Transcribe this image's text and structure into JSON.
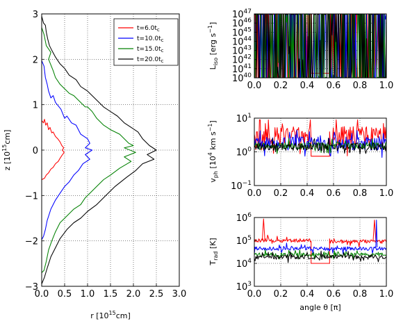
{
  "chart_data": [
    {
      "type": "line",
      "id": "main",
      "xlim": [
        0,
        3.0
      ],
      "ylim": [
        -3,
        3
      ],
      "xticks": [
        0.0,
        0.5,
        1.0,
        1.5,
        2.0,
        2.5,
        3.0
      ],
      "xtick_labels": [
        "0.0",
        "0.5",
        "1.0",
        "1.5",
        "2.0",
        "2.5",
        "3.0"
      ],
      "yticks": [
        -3,
        -2,
        -1,
        0,
        1,
        2,
        3
      ],
      "ytick_labels": [
        "−3",
        "−2",
        "−1",
        "0",
        "1",
        "2",
        "3"
      ],
      "xlabel": "r [10",
      "xlabel_sup": "15",
      "xlabel_end": "cm]",
      "ylabel": "z [10",
      "ylabel_sup": "15",
      "ylabel_end": "cm]",
      "grid": true,
      "legend_position": "top-right",
      "series": [
        {
          "name": "t=6.0t",
          "sub": "c",
          "color": "#ff0000",
          "points": [
            [
              0,
              0.65
            ],
            [
              0.04,
              0.6
            ],
            [
              0.06,
              0.68
            ],
            [
              0.09,
              0.55
            ],
            [
              0.12,
              0.6
            ],
            [
              0.15,
              0.45
            ],
            [
              0.18,
              0.5
            ],
            [
              0.22,
              0.38
            ],
            [
              0.25,
              0.4
            ],
            [
              0.3,
              0.3
            ],
            [
              0.35,
              0.25
            ],
            [
              0.4,
              0.18
            ],
            [
              0.44,
              0.1
            ],
            [
              0.48,
              0.05
            ],
            [
              0.45,
              0.0
            ],
            [
              0.49,
              -0.05
            ],
            [
              0.44,
              -0.12
            ],
            [
              0.4,
              -0.18
            ],
            [
              0.36,
              -0.25
            ],
            [
              0.3,
              -0.3
            ],
            [
              0.25,
              -0.38
            ],
            [
              0.2,
              -0.42
            ],
            [
              0.15,
              -0.5
            ],
            [
              0.1,
              -0.55
            ],
            [
              0.06,
              -0.62
            ],
            [
              0,
              -0.65
            ]
          ]
        },
        {
          "name": "t=10.0t",
          "sub": "c",
          "color": "#0000ff",
          "points": [
            [
              0,
              1.97
            ],
            [
              0.05,
              1.85
            ],
            [
              0.08,
              1.6
            ],
            [
              0.12,
              1.45
            ],
            [
              0.15,
              1.3
            ],
            [
              0.2,
              1.15
            ],
            [
              0.25,
              1.2
            ],
            [
              0.3,
              1.05
            ],
            [
              0.38,
              0.95
            ],
            [
              0.42,
              0.9
            ],
            [
              0.5,
              0.7
            ],
            [
              0.55,
              0.75
            ],
            [
              0.65,
              0.6
            ],
            [
              0.75,
              0.55
            ],
            [
              0.85,
              0.35
            ],
            [
              1.0,
              0.25
            ],
            [
              1.05,
              0.15
            ],
            [
              0.95,
              0.05
            ],
            [
              1.1,
              0.0
            ],
            [
              0.95,
              -0.1
            ],
            [
              1.05,
              -0.2
            ],
            [
              0.9,
              -0.3
            ],
            [
              0.8,
              -0.45
            ],
            [
              0.7,
              -0.55
            ],
            [
              0.6,
              -0.7
            ],
            [
              0.5,
              -0.8
            ],
            [
              0.4,
              -0.95
            ],
            [
              0.3,
              -1.1
            ],
            [
              0.2,
              -1.3
            ],
            [
              0.12,
              -1.55
            ],
            [
              0.08,
              -1.75
            ],
            [
              0.04,
              -1.9
            ],
            [
              0,
              -1.97
            ]
          ]
        },
        {
          "name": "t=15.0t",
          "sub": "c",
          "color": "#008000",
          "points": [
            [
              0,
              2.7
            ],
            [
              0.05,
              2.55
            ],
            [
              0.1,
              2.3
            ],
            [
              0.17,
              2.2
            ],
            [
              0.2,
              2.15
            ],
            [
              0.15,
              2.0
            ],
            [
              0.25,
              1.75
            ],
            [
              0.3,
              1.6
            ],
            [
              0.4,
              1.45
            ],
            [
              0.5,
              1.35
            ],
            [
              0.6,
              1.25
            ],
            [
              0.7,
              1.2
            ],
            [
              0.85,
              1.05
            ],
            [
              0.95,
              0.95
            ],
            [
              1.0,
              0.95
            ],
            [
              1.1,
              0.85
            ],
            [
              1.2,
              0.7
            ],
            [
              1.35,
              0.55
            ],
            [
              1.5,
              0.45
            ],
            [
              1.7,
              0.35
            ],
            [
              1.9,
              0.15
            ],
            [
              2.0,
              0.1
            ],
            [
              1.8,
              0.05
            ],
            [
              2.05,
              -0.05
            ],
            [
              1.8,
              -0.15
            ],
            [
              1.95,
              -0.25
            ],
            [
              1.7,
              -0.4
            ],
            [
              1.5,
              -0.55
            ],
            [
              1.35,
              -0.65
            ],
            [
              1.2,
              -0.8
            ],
            [
              1.05,
              -0.95
            ],
            [
              0.95,
              -1.05
            ],
            [
              0.85,
              -1.2
            ],
            [
              0.7,
              -1.3
            ],
            [
              0.55,
              -1.45
            ],
            [
              0.4,
              -1.6
            ],
            [
              0.3,
              -1.8
            ],
            [
              0.22,
              -2.0
            ],
            [
              0.15,
              -2.2
            ],
            [
              0.1,
              -2.45
            ],
            [
              0.05,
              -2.65
            ],
            [
              0,
              -2.7
            ]
          ]
        },
        {
          "name": "t=20.0t",
          "sub": "c",
          "color": "#000000",
          "points": [
            [
              0,
              2.95
            ],
            [
              0.04,
              2.8
            ],
            [
              0.08,
              2.75
            ],
            [
              0.1,
              2.6
            ],
            [
              0.13,
              2.45
            ],
            [
              0.17,
              2.3
            ],
            [
              0.22,
              2.2
            ],
            [
              0.3,
              2.05
            ],
            [
              0.4,
              1.9
            ],
            [
              0.5,
              1.8
            ],
            [
              0.6,
              1.65
            ],
            [
              0.75,
              1.55
            ],
            [
              0.85,
              1.4
            ],
            [
              1.0,
              1.3
            ],
            [
              1.1,
              1.2
            ],
            [
              1.25,
              1.05
            ],
            [
              1.35,
              0.95
            ],
            [
              1.5,
              0.85
            ],
            [
              1.65,
              0.75
            ],
            [
              1.8,
              0.6
            ],
            [
              1.95,
              0.5
            ],
            [
              2.1,
              0.4
            ],
            [
              2.2,
              0.25
            ],
            [
              2.35,
              0.1
            ],
            [
              2.5,
              0.0
            ],
            [
              2.3,
              -0.1
            ],
            [
              2.45,
              -0.2
            ],
            [
              2.2,
              -0.3
            ],
            [
              2.05,
              -0.45
            ],
            [
              1.85,
              -0.6
            ],
            [
              1.6,
              -0.8
            ],
            [
              1.4,
              -1.0
            ],
            [
              1.2,
              -1.2
            ],
            [
              1.0,
              -1.35
            ],
            [
              0.85,
              -1.5
            ],
            [
              0.7,
              -1.6
            ],
            [
              0.55,
              -1.75
            ],
            [
              0.4,
              -1.95
            ],
            [
              0.3,
              -2.15
            ],
            [
              0.2,
              -2.35
            ],
            [
              0.12,
              -2.6
            ],
            [
              0.06,
              -2.8
            ],
            [
              0,
              -2.95
            ]
          ]
        }
      ]
    },
    {
      "type": "line",
      "id": "liso",
      "log_y": true,
      "xlim": [
        0,
        1.0
      ],
      "ylim_exp": [
        40,
        47
      ],
      "xticks": [
        0.0,
        0.2,
        0.4,
        0.6,
        0.8,
        1.0
      ],
      "xtick_labels": [
        "0.0",
        "0.2",
        "0.4",
        "0.6",
        "0.8",
        "1.0"
      ],
      "ytick_exps": [
        40,
        41,
        42,
        43,
        44,
        45,
        46,
        47
      ],
      "ytick_base": "10",
      "ytick_sups": [
        "40",
        "41",
        "42",
        "43",
        "44",
        "45",
        "46",
        "47"
      ],
      "ylabel": "L",
      "ylabel_sub": "iso",
      "ylabel_end": " [erg s",
      "ylabel_sup": "−1",
      "ylabel_close": "]",
      "grid": true,
      "series": [
        {
          "name": "t=6.0t",
          "color": "#ff0000",
          "segments": [
            {
              "from": 0.0,
              "to": 0.43,
              "levels": [
                45.6,
                45.0
              ]
            },
            {
              "from": 0.43,
              "to": 0.57,
              "flat": 40.5
            },
            {
              "from": 0.57,
              "to": 1.0,
              "levels": [
                45.6,
                45.0
              ]
            }
          ]
        },
        {
          "name": "t=10.0t",
          "color": "#0000ff",
          "segments": [
            {
              "from": 0.0,
              "to": 1.0,
              "levels": [
                44.4,
                44.2
              ]
            }
          ]
        },
        {
          "name": "t=15.0t",
          "color": "#008000",
          "segments": [
            {
              "from": 0.0,
              "to": 1.0,
              "levels": [
                43.6,
                43.4
              ]
            }
          ]
        },
        {
          "name": "t=20.0t",
          "color": "#000000",
          "segments": [
            {
              "from": 0.0,
              "to": 1.0,
              "levels": [
                43.2,
                43.0
              ]
            }
          ]
        }
      ]
    },
    {
      "type": "line",
      "id": "vph",
      "log_y": true,
      "xlim": [
        0,
        1.0
      ],
      "ylim_exp": [
        -1,
        1
      ],
      "xticks": [
        0.0,
        0.2,
        0.4,
        0.6,
        0.8,
        1.0
      ],
      "xtick_labels": [
        "0.0",
        "0.2",
        "0.4",
        "0.6",
        "0.8",
        "1.0"
      ],
      "ytick_exps": [
        -1,
        0,
        1
      ],
      "ytick_base": "10",
      "ytick_sups": [
        "−1",
        "0",
        "1"
      ],
      "ylabel": "v",
      "ylabel_sub": "ph",
      "ylabel_end": " [10",
      "ylabel_sup": "4",
      "ylabel_close": " km s",
      "ylabel_sup2": "−1",
      "ylabel_close2": "]",
      "grid": true,
      "series": [
        {
          "name": "t=6.0t",
          "color": "#ff0000",
          "segments": [
            {
              "from": 0.0,
              "to": 0.43,
              "levels": [
                0.45,
                0.3
              ]
            },
            {
              "from": 0.43,
              "to": 0.57,
              "flat": -0.13
            },
            {
              "from": 0.57,
              "to": 1.0,
              "levels": [
                0.45,
                0.3
              ]
            }
          ]
        },
        {
          "name": "t=10.0t",
          "color": "#0000ff",
          "segments": [
            {
              "from": 0.0,
              "to": 1.0,
              "levels": [
                0.25,
                0.2
              ]
            }
          ]
        },
        {
          "name": "t=15.0t",
          "color": "#008000",
          "segments": [
            {
              "from": 0.0,
              "to": 1.0,
              "levels": [
                0.18,
                0.1
              ]
            }
          ]
        },
        {
          "name": "t=20.0t",
          "color": "#000000",
          "segments": [
            {
              "from": 0.0,
              "to": 1.0,
              "levels": [
                0.15,
                0.12
              ]
            }
          ]
        }
      ]
    },
    {
      "type": "line",
      "id": "trad",
      "log_y": true,
      "xlim": [
        0,
        1.0
      ],
      "ylim_exp": [
        3,
        6
      ],
      "xticks": [
        0.0,
        0.2,
        0.4,
        0.6,
        0.8,
        1.0
      ],
      "xtick_labels": [
        "0.0",
        "0.2",
        "0.4",
        "0.6",
        "0.8",
        "1.0"
      ],
      "ytick_exps": [
        3,
        4,
        5,
        6
      ],
      "ytick_base": "10",
      "ytick_sups": [
        "3",
        "4",
        "5",
        "6"
      ],
      "ylabel": "T",
      "ylabel_sub": "rad",
      "ylabel_end": " [K]",
      "xlabel": "angle θ [π]",
      "grid": true,
      "series": [
        {
          "name": "t=6.0t",
          "color": "#ff0000",
          "segments": [
            {
              "from": 0.0,
              "to": 0.43,
              "levels": [
                5.0,
                0.08
              ]
            },
            {
              "from": 0.43,
              "to": 0.57,
              "flat": 4.0
            },
            {
              "from": 0.57,
              "to": 1.0,
              "levels": [
                4.95,
                0.08
              ]
            }
          ]
        },
        {
          "name": "t=10.0t",
          "color": "#0000ff",
          "segments": [
            {
              "from": 0.0,
              "to": 1.0,
              "levels": [
                4.65,
                0.08
              ]
            }
          ]
        },
        {
          "name": "t=15.0t",
          "color": "#008000",
          "segments": [
            {
              "from": 0.0,
              "to": 1.0,
              "levels": [
                4.38,
                0.08
              ]
            }
          ]
        },
        {
          "name": "t=20.0t",
          "color": "#000000",
          "segments": [
            {
              "from": 0.0,
              "to": 1.0,
              "levels": [
                4.28,
                0.09
              ]
            }
          ]
        }
      ]
    }
  ]
}
